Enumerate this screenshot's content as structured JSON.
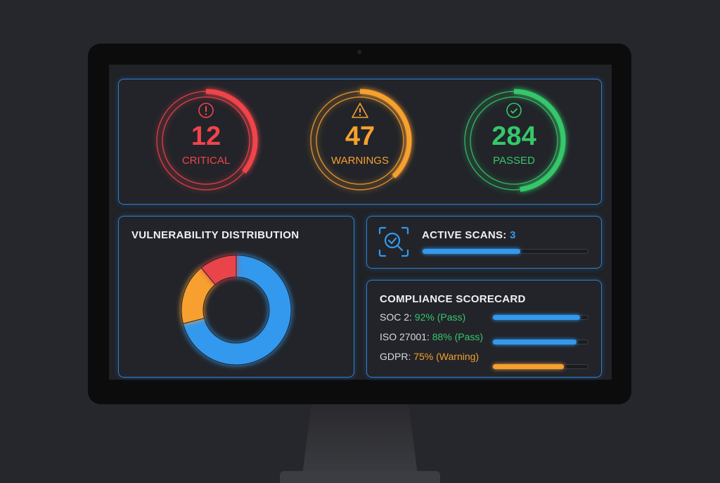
{
  "colors": {
    "critical": "#f0444b",
    "warning": "#f7a030",
    "passed": "#35c76a",
    "accent": "#3399ee",
    "track": "#1b1c20"
  },
  "gauges": [
    {
      "value": "12",
      "label": "CRITICAL",
      "icon": "exclamation-circle-icon",
      "color": "#f0444b",
      "fill": 0.36
    },
    {
      "value": "47",
      "label": "WARNINGS",
      "icon": "warning-triangle-icon",
      "color": "#f7a030",
      "fill": 0.38
    },
    {
      "value": "284",
      "label": "PASSED",
      "icon": "check-circle-icon",
      "color": "#35c76a",
      "fill": 0.48
    }
  ],
  "distribution": {
    "title": "VULNERABILITY DISTRIBUTION",
    "chart_data": {
      "type": "pie",
      "donut": true,
      "slices": [
        {
          "color": "#3399ee",
          "value": 71
        },
        {
          "color": "#f7a030",
          "value": 18
        },
        {
          "color": "#e8444a",
          "value": 11
        }
      ]
    }
  },
  "scans": {
    "label": "ACTIVE SCANS:",
    "count": "3",
    "icon": "scan-search-check-icon",
    "progress": 0.59
  },
  "compliance": {
    "title": "COMPLIANCE SCORECARD",
    "items": [
      {
        "name": "SOC 2:",
        "score": "92% (Pass)",
        "value": 0.92,
        "text_color": "#35c76a",
        "bar_color": "#3399ee"
      },
      {
        "name": "ISO 27001:",
        "score": "88% (Pass)",
        "value": 0.88,
        "text_color": "#35c76a",
        "bar_color": "#3399ee"
      },
      {
        "name": "GDPR:",
        "score": "75% (Warning)",
        "value": 0.75,
        "text_color": "#f7a030",
        "bar_color": "#f7a030"
      }
    ]
  }
}
